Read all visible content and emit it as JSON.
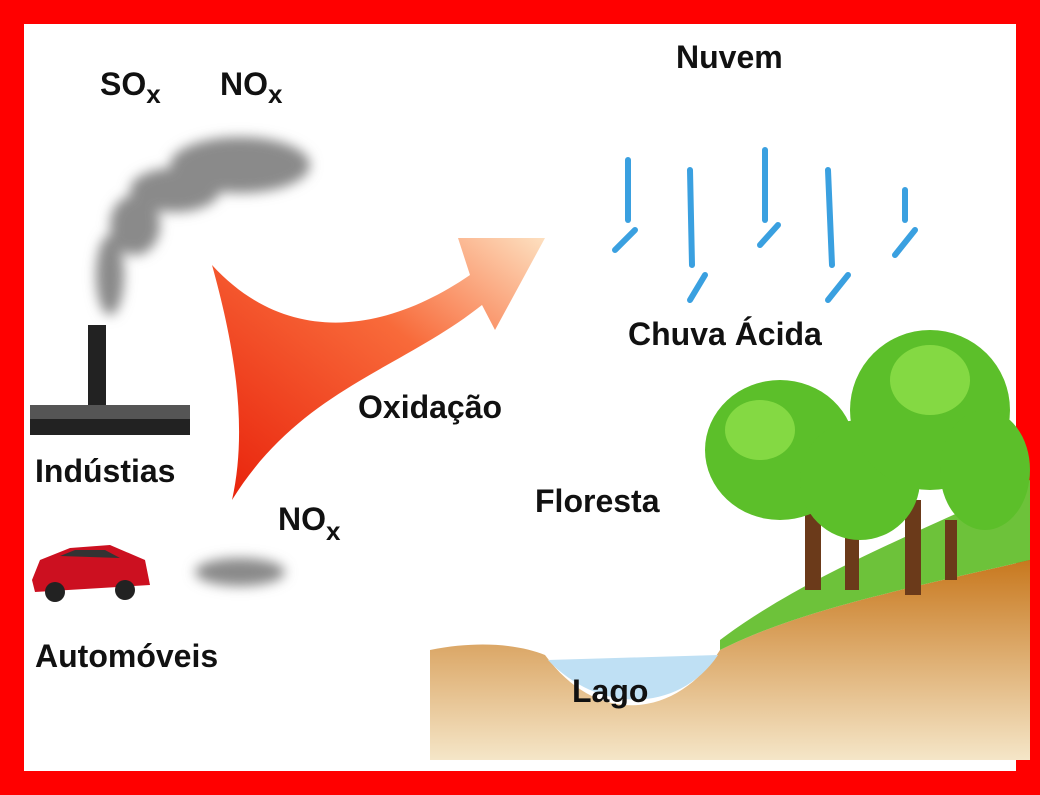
{
  "labels": {
    "cloud": "Nuvem",
    "acid_rain": "Chuva Ácida",
    "oxidation": "Oxidação",
    "industries": "Indústias",
    "forest": "Floresta",
    "cars": "Automóveis",
    "lake": "Lago"
  },
  "pollutants": [
    {
      "base": "SO",
      "sub": "x"
    },
    {
      "base": "NO",
      "sub": "x"
    },
    {
      "base": "NO",
      "sub": "x"
    }
  ]
}
